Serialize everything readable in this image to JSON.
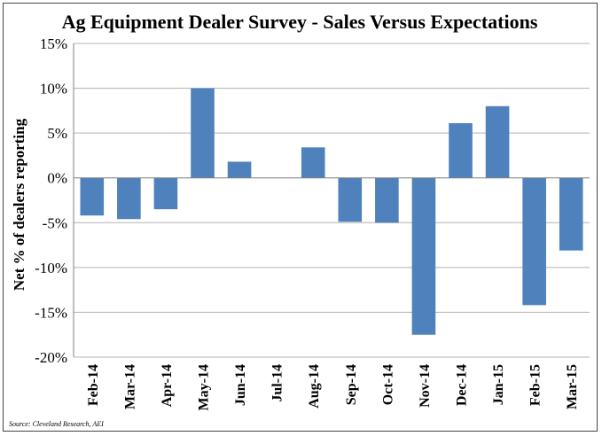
{
  "chart_data": {
    "type": "bar",
    "title": "Ag Equipment Dealer Survey - Sales Versus Expectations",
    "ylabel": "Net % of dealers reporting",
    "xlabel": "",
    "categories": [
      "Feb-14",
      "Mar-14",
      "Apr-14",
      "May-14",
      "Jun-14",
      "Jul-14",
      "Aug-14",
      "Sep-14",
      "Oct-14",
      "Nov-14",
      "Dec-14",
      "Jan-15",
      "Feb-15",
      "Mar-15"
    ],
    "values": [
      -4.2,
      -4.6,
      -3.5,
      10.0,
      1.8,
      0.0,
      3.4,
      -4.9,
      -5.0,
      -17.5,
      6.1,
      8.0,
      -14.2,
      -8.1
    ],
    "ylim": [
      -20,
      15
    ],
    "yticks": [
      15,
      10,
      5,
      0,
      -5,
      -10,
      -15,
      -20
    ],
    "ytick_labels": [
      "15%",
      "10%",
      "5%",
      "0%",
      "-5%",
      "-10%",
      "-15%",
      "-20%"
    ],
    "grid": true,
    "legend": "none",
    "bar_color": "#4f81bd",
    "source": "Source: Cleveland Research, AEI"
  }
}
